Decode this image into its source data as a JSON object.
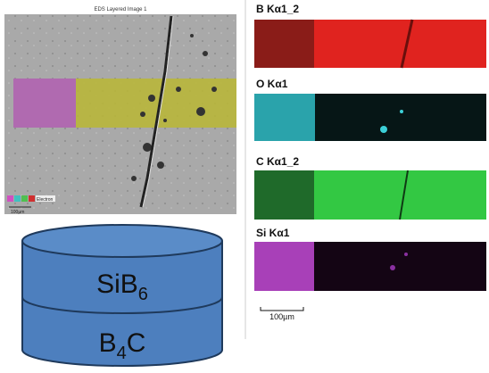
{
  "left_image": {
    "title": "EDS Layered Image 1",
    "legend": "Electron",
    "scale_bar": "100µm"
  },
  "layers": [
    {
      "parts": [
        "SiB",
        "6"
      ]
    },
    {
      "parts": [
        "B",
        "4",
        "C"
      ]
    }
  ],
  "maps": [
    {
      "label": "B Kα1_2"
    },
    {
      "label": "O Kα1"
    },
    {
      "label": "C Kα1_2"
    },
    {
      "label": "Si Kα1"
    }
  ],
  "scale_bar": "100µm"
}
